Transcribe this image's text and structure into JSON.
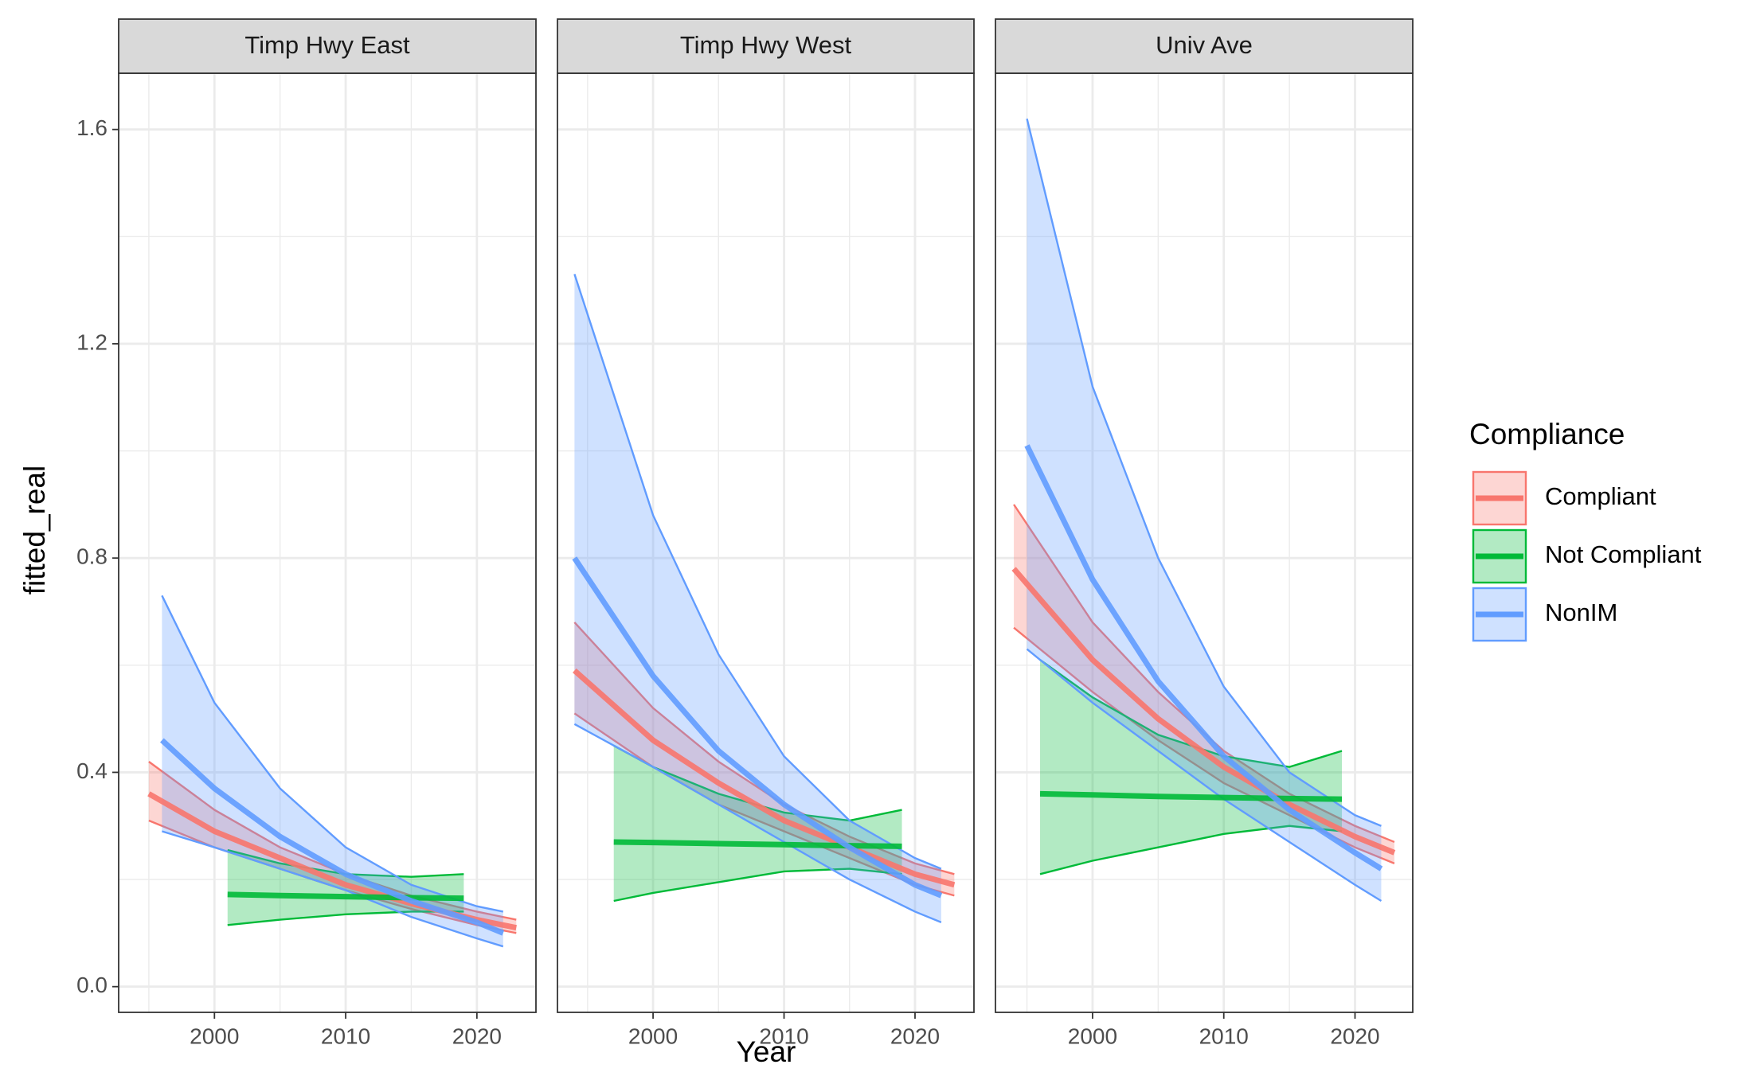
{
  "x_label": "Year",
  "y_label": "fitted_real",
  "legend_title": "Compliance",
  "chart_data": [
    {
      "type": "line",
      "title": "Timp Hwy East",
      "xlim": [
        1992.7,
        2024.5
      ],
      "xticks": [
        2000,
        2010,
        2020
      ],
      "minor_xticks": [
        1995,
        2005,
        2015
      ],
      "ylim": [
        -0.048,
        1.705
      ],
      "yticks": [
        {
          "value": 0,
          "label": "0.0"
        },
        0.4,
        0.8,
        1.2,
        1.6
      ],
      "minor_yticks": [
        0.2,
        0.6,
        1.0,
        1.4
      ],
      "grid": true,
      "series": [
        {
          "name": "Compliant",
          "color": "#F8766D",
          "x": [
            1995,
            2000,
            2005,
            2010,
            2015,
            2020,
            2023
          ],
          "values": [
            0.36,
            0.29,
            0.24,
            0.19,
            0.155,
            0.125,
            0.11
          ],
          "lower": [
            0.31,
            0.26,
            0.22,
            0.18,
            0.145,
            0.115,
            0.1
          ],
          "upper": [
            0.42,
            0.33,
            0.26,
            0.21,
            0.17,
            0.14,
            0.125
          ]
        },
        {
          "name": "Not Compliant",
          "color": "#00BA38",
          "x": [
            2001,
            2005,
            2010,
            2015,
            2019
          ],
          "values": [
            0.172,
            0.17,
            0.168,
            0.166,
            0.165
          ],
          "lower": [
            0.115,
            0.125,
            0.135,
            0.14,
            0.14
          ],
          "upper": [
            0.255,
            0.23,
            0.21,
            0.205,
            0.21
          ]
        },
        {
          "name": "NonIM",
          "color": "#619CFF",
          "x": [
            1996,
            2000,
            2005,
            2010,
            2015,
            2020,
            2022
          ],
          "values": [
            0.46,
            0.37,
            0.28,
            0.21,
            0.16,
            0.12,
            0.1
          ],
          "lower": [
            0.29,
            0.26,
            0.22,
            0.18,
            0.13,
            0.09,
            0.075
          ],
          "upper": [
            0.73,
            0.53,
            0.37,
            0.26,
            0.19,
            0.15,
            0.14
          ]
        }
      ]
    },
    {
      "type": "line",
      "title": "Timp Hwy West",
      "xlim": [
        1992.7,
        2024.5
      ],
      "xticks": [
        2000,
        2010,
        2020
      ],
      "minor_xticks": [
        1995,
        2005,
        2015
      ],
      "ylim": [
        -0.048,
        1.705
      ],
      "yticks": [
        0,
        0.4,
        0.8,
        1.2,
        1.6
      ],
      "minor_yticks": [
        0.2,
        0.6,
        1.0,
        1.4
      ],
      "grid": true,
      "series": [
        {
          "name": "Compliant",
          "color": "#F8766D",
          "x": [
            1994,
            2000,
            2005,
            2010,
            2015,
            2020,
            2023
          ],
          "values": [
            0.59,
            0.46,
            0.38,
            0.31,
            0.26,
            0.21,
            0.19
          ],
          "lower": [
            0.51,
            0.41,
            0.34,
            0.29,
            0.24,
            0.19,
            0.17
          ],
          "upper": [
            0.68,
            0.52,
            0.42,
            0.34,
            0.28,
            0.23,
            0.21
          ]
        },
        {
          "name": "Not Compliant",
          "color": "#00BA38",
          "x": [
            1997,
            2000,
            2005,
            2010,
            2015,
            2019
          ],
          "values": [
            0.27,
            0.269,
            0.267,
            0.265,
            0.263,
            0.262
          ],
          "lower": [
            0.16,
            0.175,
            0.195,
            0.215,
            0.22,
            0.21
          ],
          "upper": [
            0.45,
            0.41,
            0.36,
            0.325,
            0.31,
            0.33
          ]
        },
        {
          "name": "NonIM",
          "color": "#619CFF",
          "x": [
            1994,
            2000,
            2005,
            2010,
            2015,
            2020,
            2022
          ],
          "values": [
            0.8,
            0.58,
            0.44,
            0.34,
            0.26,
            0.19,
            0.17
          ],
          "lower": [
            0.49,
            0.41,
            0.34,
            0.27,
            0.2,
            0.14,
            0.12
          ],
          "upper": [
            1.33,
            0.88,
            0.62,
            0.43,
            0.31,
            0.24,
            0.22
          ]
        }
      ]
    },
    {
      "type": "line",
      "title": "Univ Ave",
      "xlim": [
        1992.6,
        2024.4
      ],
      "xticks": [
        2000,
        2010,
        2020
      ],
      "minor_xticks": [
        1995,
        2005,
        2015
      ],
      "ylim": [
        -0.048,
        1.705
      ],
      "yticks": [
        0,
        0.4,
        0.8,
        1.2,
        1.6
      ],
      "minor_yticks": [
        0.2,
        0.6,
        1.0,
        1.4
      ],
      "grid": true,
      "series": [
        {
          "name": "Compliant",
          "color": "#F8766D",
          "x": [
            1994,
            2000,
            2005,
            2010,
            2015,
            2020,
            2023
          ],
          "values": [
            0.78,
            0.61,
            0.5,
            0.41,
            0.34,
            0.28,
            0.25
          ],
          "lower": [
            0.67,
            0.55,
            0.46,
            0.38,
            0.32,
            0.26,
            0.23
          ],
          "upper": [
            0.9,
            0.68,
            0.55,
            0.44,
            0.36,
            0.3,
            0.27
          ]
        },
        {
          "name": "Not Compliant",
          "color": "#00BA38",
          "x": [
            1996,
            2000,
            2005,
            2010,
            2015,
            2019
          ],
          "values": [
            0.36,
            0.358,
            0.355,
            0.353,
            0.351,
            0.35
          ],
          "lower": [
            0.21,
            0.235,
            0.26,
            0.285,
            0.3,
            0.29
          ],
          "upper": [
            0.61,
            0.54,
            0.47,
            0.43,
            0.41,
            0.44
          ]
        },
        {
          "name": "NonIM",
          "color": "#619CFF",
          "x": [
            1995,
            2000,
            2005,
            2010,
            2015,
            2020,
            2022
          ],
          "values": [
            1.01,
            0.76,
            0.57,
            0.43,
            0.33,
            0.25,
            0.22
          ],
          "lower": [
            0.63,
            0.53,
            0.44,
            0.35,
            0.27,
            0.19,
            0.16
          ],
          "upper": [
            1.62,
            1.12,
            0.8,
            0.56,
            0.4,
            0.32,
            0.3
          ]
        }
      ]
    }
  ]
}
